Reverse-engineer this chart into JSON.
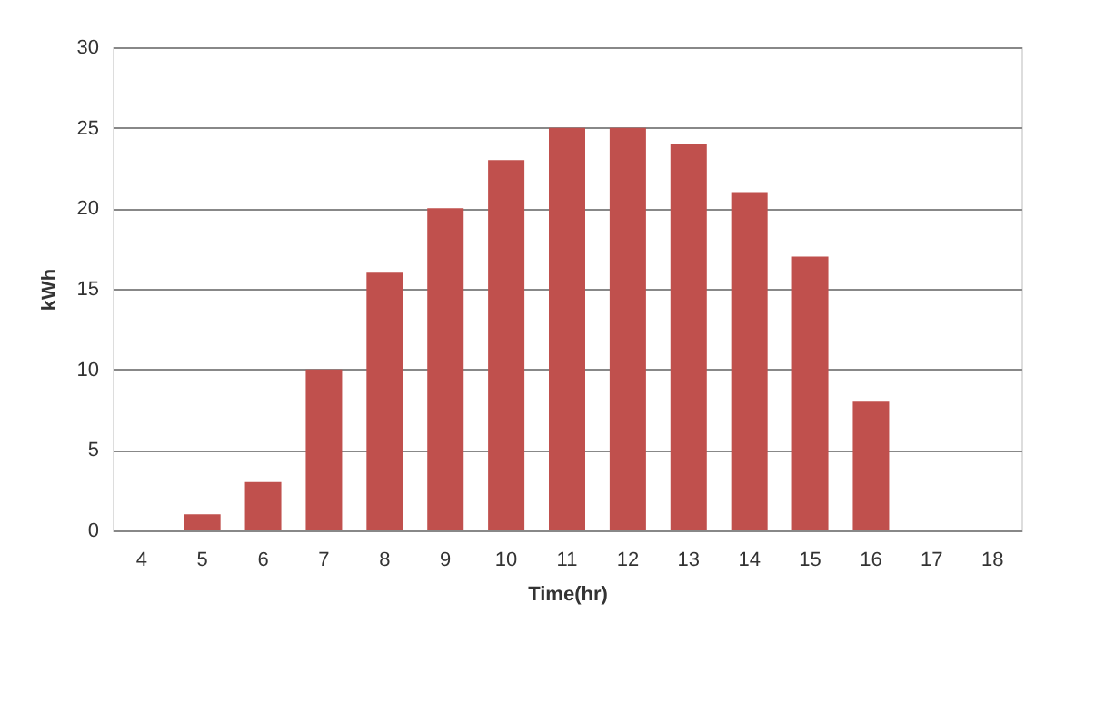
{
  "chart_data": {
    "type": "bar",
    "xlabel": "Time(hr)",
    "ylabel": "kWh",
    "categories": [
      "4",
      "5",
      "6",
      "7",
      "8",
      "9",
      "10",
      "11",
      "12",
      "13",
      "14",
      "15",
      "16",
      "17",
      "18"
    ],
    "values": [
      0,
      1,
      3,
      10,
      16,
      20,
      23,
      25,
      25,
      24,
      21,
      17,
      8,
      0,
      0
    ],
    "color": "#c0504d",
    "ylim": [
      0,
      30
    ],
    "yticks": [
      0,
      5,
      10,
      15,
      20,
      25,
      30
    ],
    "grid": "y"
  }
}
